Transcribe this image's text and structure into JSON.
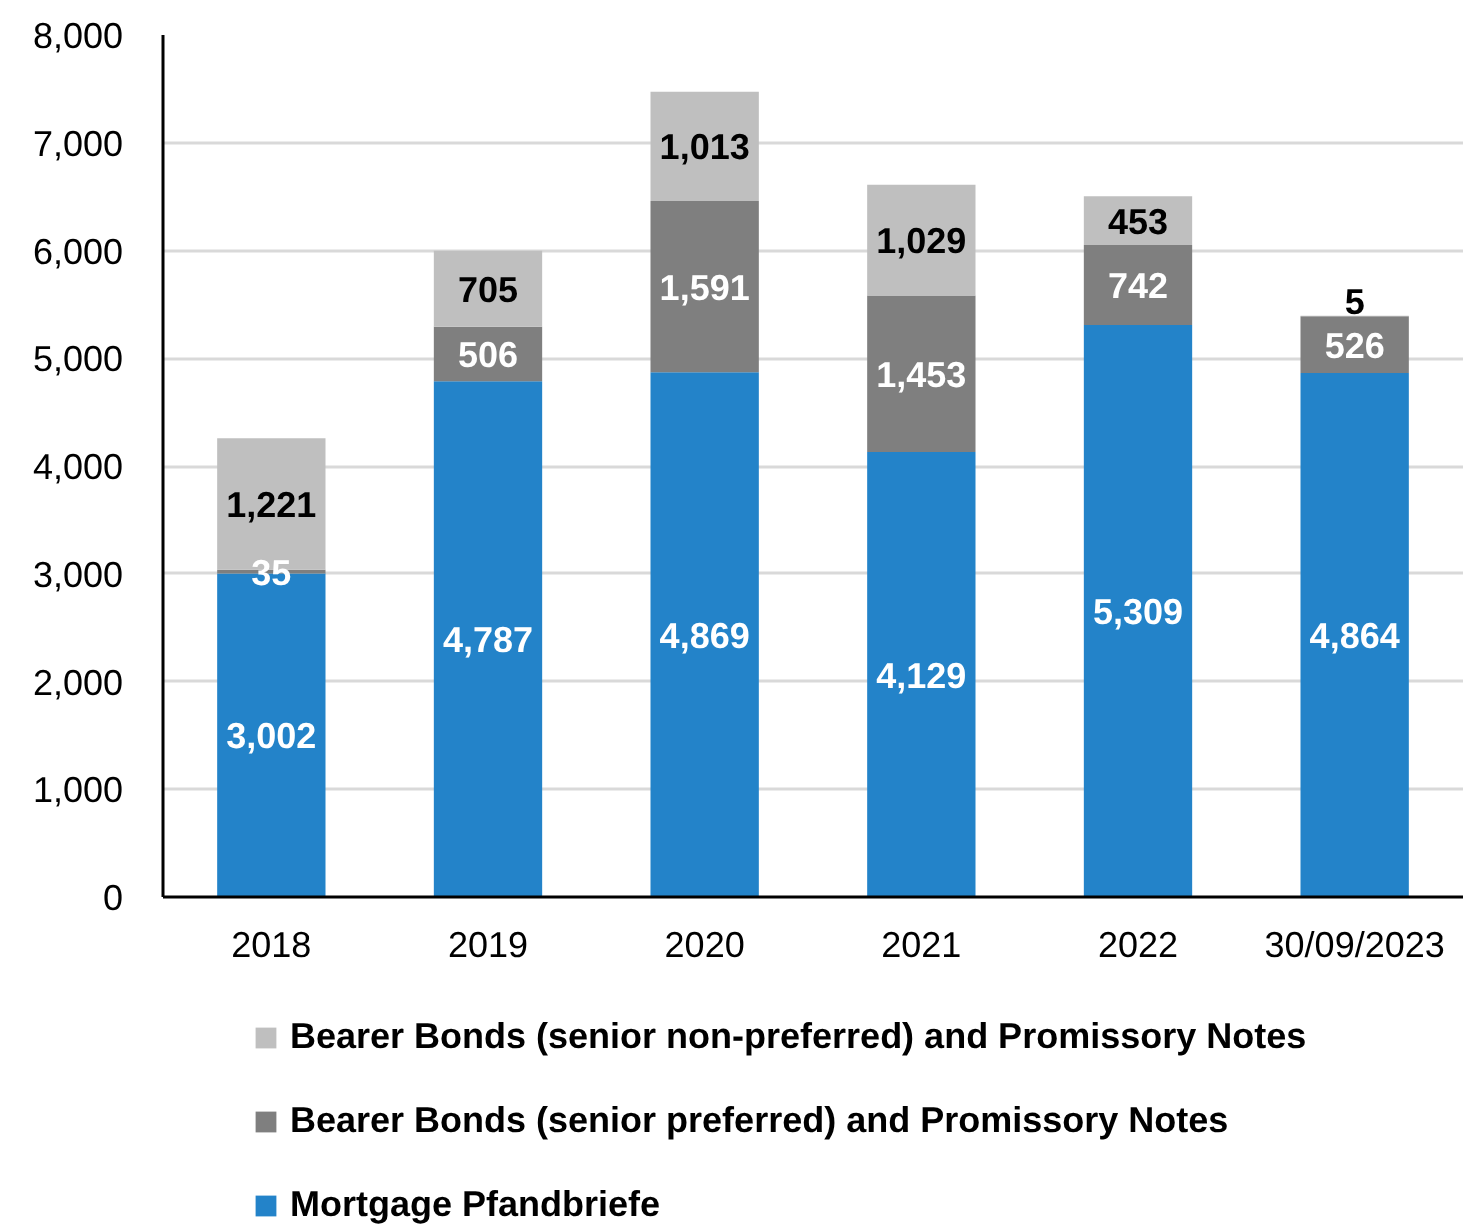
{
  "chart_data": {
    "type": "bar",
    "stacked": true,
    "categories": [
      "2018",
      "2019",
      "2020",
      "2021",
      "2022",
      "30/09/2023"
    ],
    "series": [
      {
        "name": "Mortgage Pfandbriefe",
        "color": "#2383c9",
        "values": [
          3002,
          4787,
          4869,
          4129,
          5309,
          4864
        ],
        "value_labels": [
          "3,002",
          "4,787",
          "4,869",
          "4,129",
          "5,309",
          "4,864"
        ]
      },
      {
        "name": "Bearer Bonds (senior preferred) and Promissory Notes",
        "color": "#7f7f7f",
        "values": [
          35,
          506,
          1591,
          1453,
          742,
          526
        ],
        "value_labels": [
          "35",
          "506",
          "1,591",
          "1,453",
          "742",
          "526"
        ]
      },
      {
        "name": "Bearer Bonds (senior non-preferred) and Promissory Notes",
        "color": "#bfbfbf",
        "values": [
          1221,
          705,
          1013,
          1029,
          453,
          5
        ],
        "value_labels": [
          "1,221",
          "705",
          "1,013",
          "1,029",
          "453",
          "5"
        ]
      }
    ],
    "ylim": [
      0,
      8000
    ],
    "yticks": [
      0,
      {
        "value": 1000,
        "label": "1,000"
      },
      {
        "value": 2000,
        "label": "2,000"
      },
      {
        "value": 3000,
        "label": "3,000"
      },
      {
        "value": 4000,
        "label": "4,000"
      },
      {
        "value": 5000,
        "label": "5,000"
      },
      {
        "value": 6000,
        "label": "6,000"
      },
      {
        "value": 7000,
        "label": "7,000"
      },
      {
        "value": 8000,
        "label": "8,000"
      }
    ],
    "grid": "y",
    "legend": "bottom"
  }
}
